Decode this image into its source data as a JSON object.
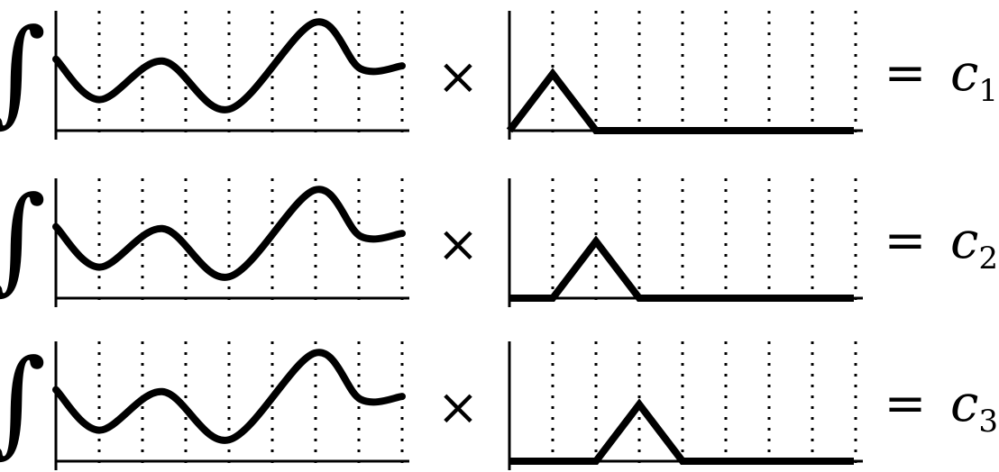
{
  "diagram": {
    "rows": [
      {
        "integral_symbol": "∫",
        "times_symbol": "×",
        "equals_symbol": "=",
        "coefficient_letter": "c",
        "coefficient_index": "1",
        "basis_peak_gridline": 1
      },
      {
        "integral_symbol": "∫",
        "times_symbol": "×",
        "equals_symbol": "=",
        "coefficient_letter": "c",
        "coefficient_index": "2",
        "basis_peak_gridline": 2
      },
      {
        "integral_symbol": "∫",
        "times_symbol": "×",
        "equals_symbol": "=",
        "coefficient_letter": "c",
        "coefficient_index": "3",
        "basis_peak_gridline": 3
      }
    ],
    "signal_plot": {
      "gridline_count": 8,
      "curve_samples": [
        0.62,
        0.2,
        0.6,
        0.1,
        1.0,
        0.52,
        0.55
      ]
    },
    "basis_plot": {
      "gridline_count": 8,
      "shape": "triangle"
    },
    "colors": {
      "stroke": "#000000",
      "background": "#ffffff"
    }
  }
}
